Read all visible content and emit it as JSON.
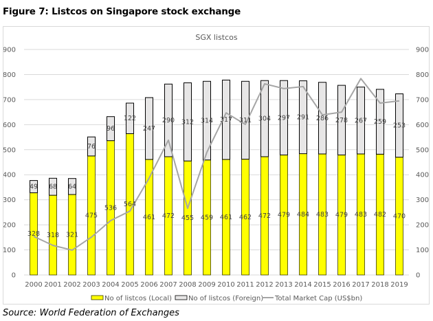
{
  "figure_title": "Figure 7: Listcos on Singapore stock exchange",
  "source": "Source: World Federation of Exchanges",
  "colors": {
    "local": "#ffff00",
    "foreign": "#e7e6e6",
    "line": "#a5a5a5",
    "bar_border": "#000000",
    "grid": "#d9d9d9"
  },
  "chart_data": {
    "type": "bar",
    "stacked": true,
    "title": "SGX listcos",
    "xlabel": "",
    "ylabel": "",
    "ylim": [
      0,
      900
    ],
    "y2lim": [
      0,
      900
    ],
    "yticks": [
      "0",
      "100",
      "200",
      "300",
      "400",
      "500",
      "600",
      "700",
      "800",
      "900"
    ],
    "grid": true,
    "legend_position": "bottom",
    "categories": [
      "2000",
      "2001",
      "2002",
      "2003",
      "2004",
      "2005",
      "2006",
      "2007",
      "2008",
      "2009",
      "2010",
      "2011",
      "2012",
      "2013",
      "2014",
      "2015",
      "2016",
      "2017",
      "2018",
      "2019"
    ],
    "series": [
      {
        "name": "No of listcos (Local)",
        "type": "bar",
        "axis": "left",
        "values": [
          328,
          318,
          321,
          475,
          536,
          564,
          461,
          472,
          455,
          459,
          461,
          462,
          472,
          479,
          484,
          483,
          479,
          483,
          482,
          470
        ]
      },
      {
        "name": "No of listcos (Foreign)",
        "type": "bar",
        "axis": "left",
        "values": [
          49,
          68,
          64,
          76,
          96,
          122,
          247,
          290,
          312,
          314,
          317,
          311,
          304,
          297,
          291,
          286,
          278,
          267,
          259,
          253
        ]
      },
      {
        "name": "Total Market Cap (US$bn)",
        "type": "line",
        "axis": "right",
        "values": [
          154,
          118,
          99,
          151,
          217,
          255,
          387,
          538,
          266,
          490,
          647,
          601,
          763,
          744,
          752,
          639,
          650,
          784,
          686,
          695
        ]
      }
    ]
  }
}
